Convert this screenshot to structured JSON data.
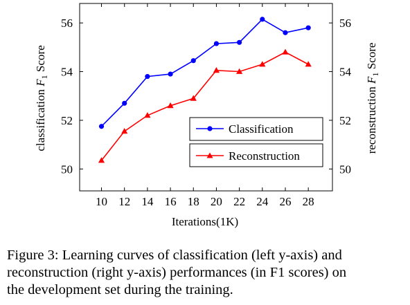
{
  "chart_data": {
    "type": "line",
    "xlabel": "Iterations(1K)",
    "ylabel_left_pre": "classification ",
    "ylabel_left_var": "F",
    "ylabel_left_sub": "1",
    "ylabel_left_post": " Score",
    "ylabel_right_pre": "reconstruction ",
    "ylabel_right_var": "F",
    "ylabel_right_sub": "1",
    "ylabel_right_post": " Score",
    "x": [
      10,
      12,
      14,
      16,
      18,
      20,
      22,
      24,
      26,
      28
    ],
    "x_ticks": [
      "10",
      "12",
      "14",
      "16",
      "18",
      "20",
      "22",
      "24",
      "26",
      "28"
    ],
    "xlim": [
      8.1,
      30.1
    ],
    "ylim": [
      49.1,
      56.8
    ],
    "y_ticks_left": [
      "50",
      "52",
      "54",
      "56"
    ],
    "y_ticks_right": [
      "50",
      "52",
      "54",
      "56"
    ],
    "y_tick_values": [
      50,
      52,
      54,
      56
    ],
    "grid": false,
    "legend_placement": "lower-right",
    "series": [
      {
        "name": "Classification",
        "axis": "left",
        "marker": "circle",
        "color": "#0000ff",
        "values": [
          51.75,
          52.7,
          53.8,
          53.9,
          54.45,
          55.15,
          55.2,
          56.15,
          55.6,
          55.8
        ]
      },
      {
        "name": "Reconstruction",
        "axis": "right",
        "marker": "triangle",
        "color": "#ff0000",
        "values": [
          50.35,
          51.55,
          52.2,
          52.6,
          52.9,
          54.05,
          54.0,
          54.3,
          54.8,
          54.3
        ]
      }
    ]
  },
  "caption": {
    "line1": "Figure 3: Learning curves of classification (left y-axis) and",
    "line2": "reconstruction (right y-axis) performances (in F1 scores) on",
    "line3": "the development set during the training."
  }
}
